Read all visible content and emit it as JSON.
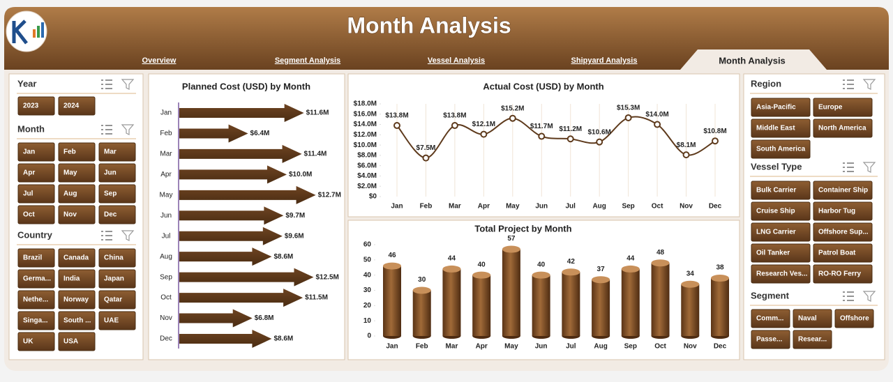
{
  "header": {
    "title": "Month Analysis"
  },
  "nav": {
    "tabs": [
      "Overview",
      "Segment Analysis",
      "Vessel Analysis",
      "Shipyard Analysis",
      "Month Analysis"
    ]
  },
  "slicers": [
    {
      "title": "Year",
      "items": [
        "2023",
        "2024"
      ]
    },
    {
      "title": "Month",
      "items": [
        "Jan",
        "Feb",
        "Mar",
        "Apr",
        "May",
        "Jun",
        "Jul",
        "Aug",
        "Sep",
        "Oct",
        "Nov",
        "Dec"
      ]
    },
    {
      "title": "Country",
      "items": [
        "Brazil",
        "Canada",
        "China",
        "Germa...",
        "India",
        "Japan",
        "Nethe...",
        "Norway",
        "Qatar",
        "Singa...",
        "South ...",
        "UAE",
        "UK",
        "USA"
      ]
    },
    {
      "title": "Region",
      "items": [
        "Asia-Pacific",
        "Europe",
        "Middle East",
        "North America",
        "South America"
      ]
    },
    {
      "title": "Vessel Type",
      "items": [
        "Bulk Carrier",
        "Container Ship",
        "Cruise Ship",
        "Harbor Tug",
        "LNG Carrier",
        "Offshore Sup...",
        "Oil Tanker",
        "Patrol Boat",
        "Research Ves...",
        "RO-RO Ferry"
      ]
    },
    {
      "title": "Segment",
      "items": [
        "Comm...",
        "Naval",
        "Offshore",
        "Passe...",
        "Resear..."
      ]
    }
  ],
  "chart_data": [
    {
      "type": "bar",
      "orientation": "horizontal",
      "title": "Planned Cost (USD) by Month",
      "categories": [
        "Jan",
        "Feb",
        "Mar",
        "Apr",
        "May",
        "Jun",
        "Jul",
        "Aug",
        "Sep",
        "Oct",
        "Nov",
        "Dec"
      ],
      "values": [
        11.6,
        6.4,
        11.4,
        10.0,
        12.7,
        9.7,
        9.6,
        8.6,
        12.5,
        11.5,
        6.8,
        8.6
      ],
      "value_labels": [
        "$11.6M",
        "$6.4M",
        "$11.4M",
        "$10.0M",
        "$12.7M",
        "$9.7M",
        "$9.6M",
        "$8.6M",
        "$12.5M",
        "$11.5M",
        "$6.8M",
        "$8.6M"
      ],
      "color": "#5e3a1c"
    },
    {
      "type": "line",
      "title": "Actual Cost (USD) by Month",
      "categories": [
        "Jan",
        "Feb",
        "Mar",
        "Apr",
        "May",
        "Jun",
        "Jul",
        "Aug",
        "Sep",
        "Oct",
        "Nov",
        "Dec"
      ],
      "values": [
        13.8,
        7.5,
        13.8,
        12.1,
        15.2,
        11.7,
        11.2,
        10.6,
        15.3,
        14.0,
        8.1,
        10.8
      ],
      "value_labels": [
        "$13.8M",
        "$7.5M",
        "$13.8M",
        "$12.1M",
        "$15.2M",
        "$11.7M",
        "$11.2M",
        "$10.6M",
        "$15.3M",
        "$14.0M",
        "$8.1M",
        "$10.8M"
      ],
      "ylim": [
        0,
        18
      ],
      "yticks": [
        {
          "value": 0,
          "label": "$0"
        },
        {
          "value": 2,
          "label": "$2.0M"
        },
        {
          "value": 4,
          "label": "$4.0M"
        },
        {
          "value": 6,
          "label": "$6.0M"
        },
        {
          "value": 8,
          "label": "$8.0M"
        },
        {
          "value": 10,
          "label": "$10.0M"
        },
        {
          "value": 12,
          "label": "$12.0M"
        },
        {
          "value": 14,
          "label": "$14.0M"
        },
        {
          "value": 16,
          "label": "$16.0M"
        },
        {
          "value": 18,
          "label": "$18.0M"
        }
      ],
      "color": "#5e3a1c"
    },
    {
      "type": "bar",
      "orientation": "vertical",
      "title": "Total Project by Month",
      "categories": [
        "Jan",
        "Feb",
        "Mar",
        "Apr",
        "May",
        "Jun",
        "Jul",
        "Aug",
        "Sep",
        "Oct",
        "Nov",
        "Dec"
      ],
      "values": [
        46,
        30,
        44,
        40,
        57,
        40,
        42,
        37,
        44,
        48,
        34,
        38
      ],
      "ylim": [
        0,
        60
      ],
      "yticks": [
        0,
        10,
        20,
        30,
        40,
        50,
        60
      ],
      "color": "#7a4a22"
    }
  ]
}
